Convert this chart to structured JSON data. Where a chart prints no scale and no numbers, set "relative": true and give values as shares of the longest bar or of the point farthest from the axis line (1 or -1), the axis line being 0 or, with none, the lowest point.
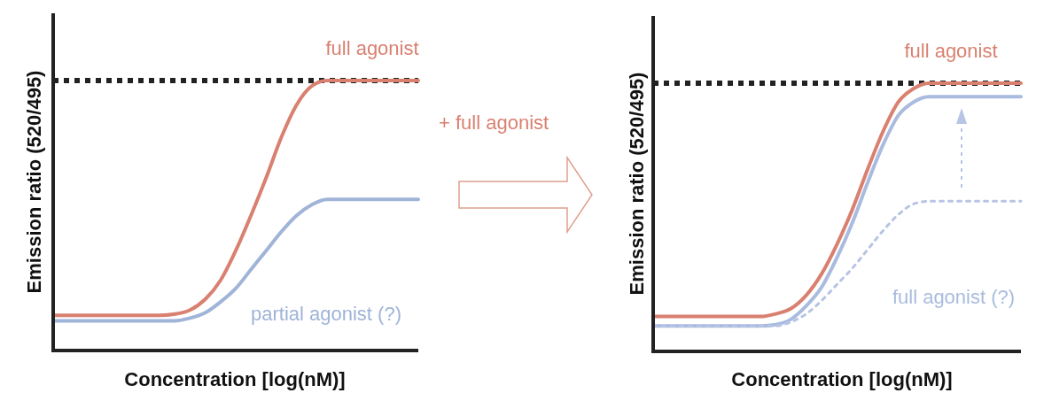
{
  "chart_data": [
    {
      "type": "line",
      "relative": true,
      "xlabel": "Concentration [log(nM)]",
      "ylabel": "Emission ratio (520/495)",
      "annotations": [
        "+ full agonist"
      ],
      "categories": [
        null,
        null,
        null,
        null,
        null,
        null,
        null,
        null,
        null,
        null,
        null,
        null,
        null,
        null,
        null,
        null,
        null,
        null,
        null,
        null,
        null,
        null,
        null,
        null,
        null
      ],
      "ref_lines": [
        {
          "axis": "y",
          "value": 1,
          "color": "#222222",
          "line_style": "dotted"
        }
      ],
      "series": [
        {
          "name": "full agonist",
          "color": "#d98070",
          "values": [
            0.13,
            0.13,
            0.13,
            0.13,
            0.13,
            0.13,
            0.13,
            0.13,
            0.135,
            0.15,
            0.19,
            0.26,
            0.37,
            0.5,
            0.64,
            0.79,
            0.91,
            0.98,
            1,
            1,
            1,
            1,
            1,
            1,
            1
          ]
        },
        {
          "name": "partial agonist (?)",
          "color": "#9fb4d8",
          "values": [
            0.11,
            0.11,
            0.11,
            0.11,
            0.11,
            0.11,
            0.11,
            0.11,
            0.11,
            0.12,
            0.14,
            0.18,
            0.23,
            0.3,
            0.37,
            0.44,
            0.5,
            0.54,
            0.56,
            0.56,
            0.56,
            0.56,
            0.56,
            0.56,
            0.56
          ]
        }
      ]
    },
    {
      "type": "line",
      "relative": true,
      "xlabel": "Concentration [log(nM)]",
      "ylabel": "Emission ratio (520/495)",
      "categories": [
        null,
        null,
        null,
        null,
        null,
        null,
        null,
        null,
        null,
        null,
        null,
        null,
        null,
        null,
        null,
        null,
        null,
        null,
        null,
        null,
        null,
        null,
        null,
        null,
        null
      ],
      "ref_lines": [
        {
          "axis": "y",
          "value": 1,
          "color": "#222222",
          "line_style": "dotted"
        }
      ],
      "series": [
        {
          "name": "full agonist",
          "color": "#d98070",
          "values": [
            0.13,
            0.13,
            0.13,
            0.13,
            0.13,
            0.13,
            0.13,
            0.13,
            0.14,
            0.16,
            0.21,
            0.29,
            0.4,
            0.53,
            0.68,
            0.82,
            0.93,
            0.98,
            1,
            1,
            1,
            1,
            1,
            1,
            1
          ]
        },
        {
          "name": "full agonist (?)",
          "color": "#a9bbdf",
          "values": [
            0.095,
            0.095,
            0.095,
            0.095,
            0.095,
            0.095,
            0.095,
            0.095,
            0.1,
            0.12,
            0.17,
            0.24,
            0.35,
            0.48,
            0.63,
            0.77,
            0.88,
            0.93,
            0.95,
            0.95,
            0.95,
            0.95,
            0.95,
            0.95,
            0.95
          ]
        },
        {
          "color": "#b7c4e4",
          "line_style": "dotted",
          "values": [
            0.095,
            0.095,
            0.095,
            0.095,
            0.095,
            0.095,
            0.095,
            0.095,
            0.095,
            0.11,
            0.14,
            0.19,
            0.25,
            0.31,
            0.38,
            0.45,
            0.51,
            0.55,
            0.56,
            0.56,
            0.56,
            0.56,
            0.56,
            0.56,
            0.56
          ]
        }
      ]
    }
  ]
}
